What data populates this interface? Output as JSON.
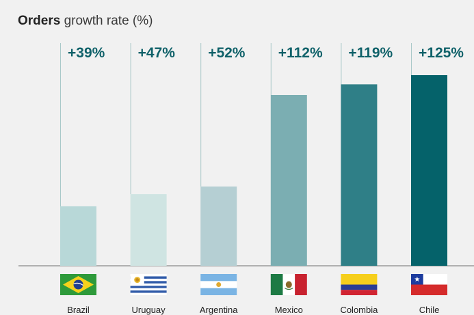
{
  "chart_data": {
    "type": "bar",
    "title_bold": "Orders",
    "title_rest": "growth rate (%)",
    "categories": [
      "Brazil",
      "Uruguay",
      "Argentina",
      "Mexico",
      "Colombia",
      "Chile"
    ],
    "values": [
      39,
      47,
      52,
      112,
      119,
      125
    ],
    "value_labels": [
      "+39%",
      "+47%",
      "+52%",
      "+112%",
      "+119%",
      "+125%"
    ],
    "bar_colors": [
      "#b8d8d8",
      "#cfe4e2",
      "#b5cfd3",
      "#7baeb2",
      "#2f7f87",
      "#05626a"
    ],
    "value_label_color": "#0f6169",
    "guide_line_color": "#a9c9c9",
    "ylim": [
      0,
      125
    ],
    "icons": [
      "brazil-flag-icon",
      "uruguay-flag-icon",
      "argentina-flag-icon",
      "mexico-flag-icon",
      "colombia-flag-icon",
      "chile-flag-icon"
    ]
  }
}
